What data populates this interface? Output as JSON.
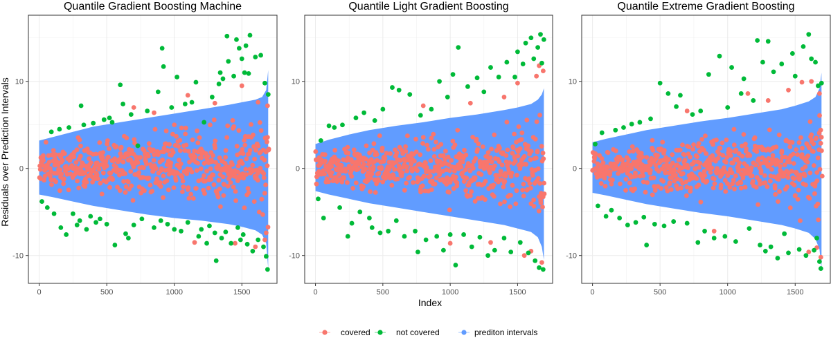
{
  "figure": {
    "ylabel": "Residuals over Prediction Intervals",
    "xlabel": "Index"
  },
  "legend": {
    "placement": "bottom-center",
    "items": [
      {
        "label": "covered",
        "color": "#F8766D"
      },
      {
        "label": "not covered",
        "color": "#00BA38"
      },
      {
        "label": "prediton intervals",
        "color": "#619CFF"
      }
    ]
  },
  "chart_data": [
    {
      "type": "scatter",
      "title": "Quantile Gradient Boosting Machine",
      "xlim": [
        -80,
        1760
      ],
      "ylim": [
        -13.2,
        17.6
      ],
      "xticks": [
        0,
        500,
        1000,
        1500
      ],
      "yticks": [
        -10,
        0,
        10
      ],
      "n_points": 1700,
      "interval": {
        "lower": [
          [
            0,
            -3.0
          ],
          [
            100,
            -3.3
          ],
          [
            250,
            -3.8
          ],
          [
            400,
            -4.3
          ],
          [
            600,
            -4.8
          ],
          [
            800,
            -5.3
          ],
          [
            1000,
            -5.7
          ],
          [
            1200,
            -6.0
          ],
          [
            1400,
            -6.4
          ],
          [
            1500,
            -6.7
          ],
          [
            1600,
            -7.1
          ],
          [
            1650,
            -7.6
          ],
          [
            1680,
            -8.6
          ],
          [
            1695,
            -11.5
          ]
        ],
        "upper": [
          [
            0,
            3.2
          ],
          [
            100,
            3.6
          ],
          [
            250,
            4.2
          ],
          [
            400,
            4.8
          ],
          [
            600,
            5.3
          ],
          [
            800,
            5.8
          ],
          [
            1000,
            6.3
          ],
          [
            1200,
            6.8
          ],
          [
            1400,
            7.3
          ],
          [
            1500,
            7.6
          ],
          [
            1600,
            7.9
          ],
          [
            1650,
            8.2
          ],
          [
            1680,
            9.0
          ],
          [
            1695,
            11.3
          ]
        ]
      },
      "not_covered": [
        [
          20,
          -3.8
        ],
        [
          60,
          -4.5
        ],
        [
          90,
          4.2
        ],
        [
          110,
          -5.2
        ],
        [
          150,
          4.5
        ],
        [
          160,
          -6.8
        ],
        [
          200,
          -7.6
        ],
        [
          220,
          4.7
        ],
        [
          250,
          -5.2
        ],
        [
          280,
          -6.5
        ],
        [
          300,
          -6.0
        ],
        [
          310,
          7.2
        ],
        [
          330,
          5.0
        ],
        [
          350,
          -7.0
        ],
        [
          380,
          -5.5
        ],
        [
          400,
          5.2
        ],
        [
          420,
          -6.2
        ],
        [
          450,
          -5.8
        ],
        [
          480,
          5.6
        ],
        [
          500,
          -6.4
        ],
        [
          520,
          5.8
        ],
        [
          540,
          5.3
        ],
        [
          560,
          -8.8
        ],
        [
          600,
          9.6
        ],
        [
          620,
          7.4
        ],
        [
          640,
          -7.5
        ],
        [
          660,
          -8.0
        ],
        [
          680,
          6.2
        ],
        [
          700,
          -6.5
        ],
        [
          730,
          2.6
        ],
        [
          760,
          -5.8
        ],
        [
          800,
          6.6
        ],
        [
          850,
          -6.8
        ],
        [
          880,
          8.8
        ],
        [
          900,
          -6.0
        ],
        [
          910,
          13.8
        ],
        [
          920,
          11.7
        ],
        [
          950,
          -6.4
        ],
        [
          980,
          7.0
        ],
        [
          1000,
          -7.0
        ],
        [
          1020,
          10.5
        ],
        [
          1050,
          -7.2
        ],
        [
          1080,
          7.4
        ],
        [
          1100,
          -6.2
        ],
        [
          1130,
          7.6
        ],
        [
          1160,
          9.9
        ],
        [
          1180,
          -7.8
        ],
        [
          1200,
          -7.0
        ],
        [
          1220,
          5.3
        ],
        [
          1240,
          -8.6
        ],
        [
          1260,
          -6.6
        ],
        [
          1280,
          8.2
        ],
        [
          1300,
          -7.4
        ],
        [
          1310,
          -10.6
        ],
        [
          1330,
          9.7
        ],
        [
          1340,
          11.0
        ],
        [
          1350,
          -8.0
        ],
        [
          1360,
          10.3
        ],
        [
          1380,
          -7.3
        ],
        [
          1390,
          15.2
        ],
        [
          1400,
          12.3
        ],
        [
          1420,
          -8.6
        ],
        [
          1440,
          10.6
        ],
        [
          1460,
          14.8
        ],
        [
          1470,
          -6.8
        ],
        [
          1480,
          13.8
        ],
        [
          1490,
          -8.2
        ],
        [
          1500,
          12.6
        ],
        [
          1510,
          -7.6
        ],
        [
          1520,
          11.0
        ],
        [
          1530,
          14.1
        ],
        [
          1540,
          -8.7
        ],
        [
          1550,
          10.9
        ],
        [
          1560,
          15.3
        ],
        [
          1580,
          -9.5
        ],
        [
          1600,
          12.8
        ],
        [
          1620,
          -8.2
        ],
        [
          1640,
          13.0
        ],
        [
          1660,
          -9.0
        ],
        [
          1670,
          9.8
        ],
        [
          1680,
          -10.1
        ],
        [
          1690,
          -11.6
        ],
        [
          1695,
          8.5
        ]
      ],
      "covered_extra": [
        [
          700,
          7.0
        ],
        [
          850,
          6.4
        ],
        [
          1100,
          8.4
        ],
        [
          1150,
          -8.5
        ],
        [
          1300,
          7.5
        ],
        [
          1450,
          -8.6
        ],
        [
          1500,
          9.5
        ],
        [
          1600,
          -9.0
        ],
        [
          1620,
          7.6
        ],
        [
          1670,
          -8.2
        ],
        [
          1680,
          -7.4
        ],
        [
          1690,
          7.2
        ]
      ]
    },
    {
      "type": "scatter",
      "title": "Quantile Light Gradient Boosting",
      "xlim": [
        -80,
        1760
      ],
      "ylim": [
        -13.2,
        17.6
      ],
      "xticks": [
        0,
        500,
        1000,
        1500
      ],
      "yticks": [
        -10,
        0,
        10
      ],
      "n_points": 1700,
      "interval": {
        "lower": [
          [
            0,
            -2.6
          ],
          [
            100,
            -3.0
          ],
          [
            250,
            -3.5
          ],
          [
            400,
            -4.0
          ],
          [
            600,
            -4.5
          ],
          [
            800,
            -5.0
          ],
          [
            1000,
            -5.5
          ],
          [
            1200,
            -6.0
          ],
          [
            1400,
            -6.5
          ],
          [
            1500,
            -6.9
          ],
          [
            1600,
            -7.3
          ],
          [
            1650,
            -7.9
          ],
          [
            1680,
            -9.0
          ],
          [
            1695,
            -10.5
          ]
        ],
        "upper": [
          [
            0,
            2.8
          ],
          [
            100,
            3.3
          ],
          [
            250,
            3.9
          ],
          [
            400,
            4.4
          ],
          [
            600,
            4.9
          ],
          [
            800,
            5.3
          ],
          [
            1000,
            5.8
          ],
          [
            1200,
            6.2
          ],
          [
            1400,
            6.7
          ],
          [
            1500,
            7.0
          ],
          [
            1600,
            7.4
          ],
          [
            1650,
            7.9
          ],
          [
            1680,
            8.5
          ],
          [
            1695,
            9.2
          ]
        ]
      },
      "not_covered": [
        [
          20,
          -3.5
        ],
        [
          40,
          3.2
        ],
        [
          60,
          -5.7
        ],
        [
          100,
          4.9
        ],
        [
          140,
          4.7
        ],
        [
          180,
          -4.5
        ],
        [
          200,
          5.0
        ],
        [
          240,
          -7.8
        ],
        [
          270,
          -6.3
        ],
        [
          300,
          5.8
        ],
        [
          330,
          -5.0
        ],
        [
          360,
          6.4
        ],
        [
          400,
          -5.7
        ],
        [
          420,
          -6.8
        ],
        [
          440,
          5.5
        ],
        [
          480,
          -7.4
        ],
        [
          500,
          6.8
        ],
        [
          540,
          -7.2
        ],
        [
          570,
          9.3
        ],
        [
          600,
          -6.0
        ],
        [
          620,
          9.0
        ],
        [
          660,
          -7.8
        ],
        [
          700,
          8.5
        ],
        [
          740,
          -7.2
        ],
        [
          760,
          -9.6
        ],
        [
          780,
          6.1
        ],
        [
          820,
          -8.2
        ],
        [
          860,
          6.8
        ],
        [
          900,
          -7.8
        ],
        [
          920,
          10.0
        ],
        [
          950,
          -9.4
        ],
        [
          980,
          8.2
        ],
        [
          1000,
          -7.6
        ],
        [
          1020,
          10.8
        ],
        [
          1040,
          -11.1
        ],
        [
          1060,
          13.9
        ],
        [
          1100,
          -7.6
        ],
        [
          1130,
          9.4
        ],
        [
          1160,
          -9.0
        ],
        [
          1200,
          10.4
        ],
        [
          1220,
          -7.9
        ],
        [
          1250,
          8.8
        ],
        [
          1280,
          -10.0
        ],
        [
          1300,
          11.6
        ],
        [
          1330,
          -9.4
        ],
        [
          1360,
          10.5
        ],
        [
          1400,
          -8.0
        ],
        [
          1420,
          12.2
        ],
        [
          1450,
          -9.6
        ],
        [
          1480,
          10.5
        ],
        [
          1500,
          13.4
        ],
        [
          1520,
          -8.5
        ],
        [
          1540,
          12.0
        ],
        [
          1560,
          14.4
        ],
        [
          1580,
          -9.7
        ],
        [
          1600,
          15.0
        ],
        [
          1620,
          12.6
        ],
        [
          1630,
          -10.6
        ],
        [
          1650,
          13.9
        ],
        [
          1660,
          -11.4
        ],
        [
          1670,
          15.4
        ],
        [
          1680,
          12.1
        ],
        [
          1690,
          -11.6
        ],
        [
          1695,
          14.8
        ]
      ],
      "covered_extra": [
        [
          800,
          7.2
        ],
        [
          1000,
          -8.6
        ],
        [
          1150,
          7.5
        ],
        [
          1300,
          -8.5
        ],
        [
          1400,
          8.2
        ],
        [
          1500,
          9.8
        ],
        [
          1550,
          -10.0
        ],
        [
          1600,
          -9.5
        ],
        [
          1640,
          10.6
        ],
        [
          1660,
          11.8
        ],
        [
          1680,
          -10.8
        ],
        [
          1690,
          11.2
        ]
      ]
    },
    {
      "type": "scatter",
      "title": "Quantile Extreme Gradient Boosting",
      "xlim": [
        -80,
        1760
      ],
      "ylim": [
        -13.2,
        17.6
      ],
      "xticks": [
        0,
        500,
        1000,
        1500
      ],
      "yticks": [
        -10,
        0,
        10
      ],
      "n_points": 1700,
      "interval": {
        "lower": [
          [
            0,
            -2.8
          ],
          [
            100,
            -3.1
          ],
          [
            250,
            -3.6
          ],
          [
            400,
            -4.1
          ],
          [
            600,
            -4.6
          ],
          [
            800,
            -5.1
          ],
          [
            1000,
            -5.5
          ],
          [
            1200,
            -6.0
          ],
          [
            1400,
            -6.5
          ],
          [
            1500,
            -6.9
          ],
          [
            1600,
            -7.4
          ],
          [
            1650,
            -8.1
          ],
          [
            1680,
            -9.3
          ],
          [
            1695,
            -11.6
          ]
        ],
        "upper": [
          [
            0,
            3.0
          ],
          [
            100,
            3.4
          ],
          [
            250,
            3.9
          ],
          [
            400,
            4.4
          ],
          [
            600,
            4.9
          ],
          [
            800,
            5.4
          ],
          [
            1000,
            5.8
          ],
          [
            1200,
            6.3
          ],
          [
            1400,
            6.8
          ],
          [
            1500,
            7.2
          ],
          [
            1600,
            7.7
          ],
          [
            1650,
            8.2
          ],
          [
            1680,
            9.2
          ],
          [
            1695,
            11.0
          ]
        ]
      },
      "not_covered": [
        [
          20,
          2.8
        ],
        [
          40,
          -4.3
        ],
        [
          70,
          4.1
        ],
        [
          100,
          -5.5
        ],
        [
          140,
          -4.8
        ],
        [
          170,
          4.4
        ],
        [
          200,
          -5.7
        ],
        [
          230,
          4.7
        ],
        [
          260,
          -6.5
        ],
        [
          290,
          5.1
        ],
        [
          320,
          -6.2
        ],
        [
          350,
          5.3
        ],
        [
          380,
          -5.6
        ],
        [
          400,
          -8.8
        ],
        [
          430,
          5.7
        ],
        [
          460,
          -6.4
        ],
        [
          500,
          9.8
        ],
        [
          530,
          -6.6
        ],
        [
          560,
          8.6
        ],
        [
          600,
          -6.1
        ],
        [
          620,
          7.1
        ],
        [
          650,
          8.4
        ],
        [
          700,
          -6.3
        ],
        [
          740,
          6.2
        ],
        [
          780,
          -8.5
        ],
        [
          800,
          6.6
        ],
        [
          830,
          -7.2
        ],
        [
          860,
          10.8
        ],
        [
          900,
          -8.0
        ],
        [
          940,
          12.9
        ],
        [
          980,
          -7.8
        ],
        [
          1000,
          7.0
        ],
        [
          1030,
          11.6
        ],
        [
          1060,
          -8.4
        ],
        [
          1100,
          8.6
        ],
        [
          1120,
          10.3
        ],
        [
          1160,
          -6.9
        ],
        [
          1190,
          7.8
        ],
        [
          1220,
          14.7
        ],
        [
          1240,
          -8.8
        ],
        [
          1260,
          12.2
        ],
        [
          1280,
          -9.5
        ],
        [
          1300,
          14.6
        ],
        [
          1320,
          -9.0
        ],
        [
          1340,
          11.1
        ],
        [
          1370,
          -10.3
        ],
        [
          1400,
          12.0
        ],
        [
          1420,
          -7.5
        ],
        [
          1450,
          -9.7
        ],
        [
          1480,
          13.2
        ],
        [
          1500,
          10.6
        ],
        [
          1530,
          -9.3
        ],
        [
          1560,
          14.0
        ],
        [
          1580,
          -10.0
        ],
        [
          1600,
          15.4
        ],
        [
          1620,
          12.6
        ],
        [
          1640,
          -9.4
        ],
        [
          1650,
          12.2
        ],
        [
          1660,
          -8.0
        ],
        [
          1670,
          9.5
        ],
        [
          1680,
          -10.7
        ],
        [
          1690,
          -11.5
        ],
        [
          1695,
          9.8
        ]
      ],
      "covered_extra": [
        [
          700,
          6.6
        ],
        [
          900,
          -7.2
        ],
        [
          1150,
          8.6
        ],
        [
          1300,
          7.8
        ],
        [
          1450,
          9.0
        ],
        [
          1550,
          9.9
        ],
        [
          1600,
          -9.6
        ],
        [
          1620,
          10.0
        ],
        [
          1660,
          -9.1
        ],
        [
          1680,
          8.6
        ],
        [
          1690,
          -10.2
        ]
      ]
    }
  ]
}
